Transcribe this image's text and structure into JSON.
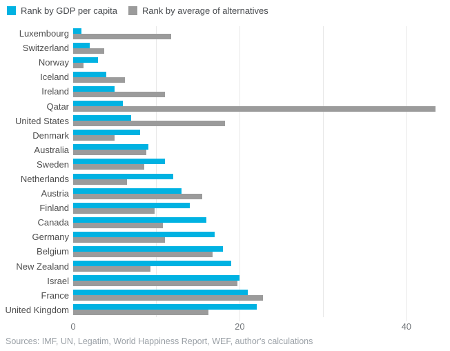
{
  "colors": {
    "gdp": "#00b2e2",
    "alt": "#9b9b9b",
    "grid": "#e8e8e8",
    "category_label": "#4d4d4d",
    "tick_label": "#73777b",
    "source_text": "#9aa0a6"
  },
  "legend": {
    "items": [
      {
        "id": "gdp",
        "label": "Rank by GDP per capita"
      },
      {
        "id": "alt",
        "label": "Rank by average of alternatives"
      }
    ]
  },
  "source_text": "Sources: IMF, UN, Legatim, World Happiness Report, WEF, author's calculations",
  "chart_data": {
    "type": "bar",
    "orientation": "horizontal",
    "title": "",
    "xlabel": "",
    "ylabel": "",
    "categories": [
      "Luxembourg",
      "Switzerland",
      "Norway",
      "Iceland",
      "Ireland",
      "Qatar",
      "United States",
      "Denmark",
      "Australia",
      "Sweden",
      "Netherlands",
      "Austria",
      "Finland",
      "Canada",
      "Germany",
      "Belgium",
      "New Zealand",
      "Israel",
      "France",
      "United Kingdom"
    ],
    "series": [
      {
        "name": "Rank by GDP per capita",
        "values": [
          1,
          2,
          3,
          4,
          5,
          6,
          7,
          8,
          9,
          11,
          12,
          13,
          14,
          16,
          17,
          18,
          19,
          20,
          21,
          22
        ]
      },
      {
        "name": "Rank by average of alternatives",
        "values": [
          11.75,
          3.75,
          1.25,
          6.25,
          11,
          43.5,
          18.25,
          5,
          8.75,
          8.5,
          6.5,
          15.5,
          9.75,
          10.75,
          11,
          16.75,
          9.25,
          19.75,
          22.75,
          16.25
        ]
      }
    ],
    "x_ticks": [
      0,
      20,
      40
    ],
    "x_gridlines": [
      10,
      20,
      30,
      40
    ],
    "xlim": [
      0,
      45.1
    ],
    "grid": "vertical-light",
    "legend_position": "top-left"
  }
}
